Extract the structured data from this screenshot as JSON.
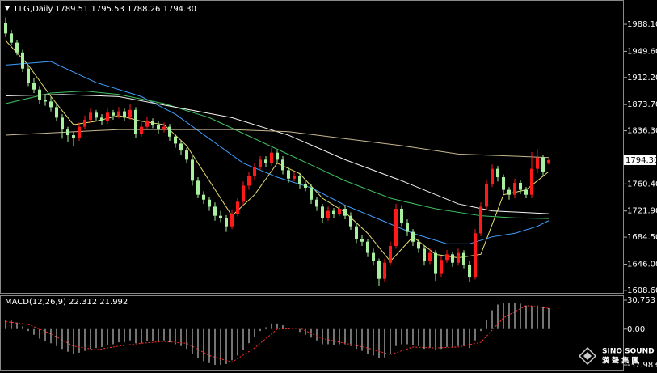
{
  "chart_data": [
    {
      "type": "candlestick",
      "title": "LLG,Daily",
      "ohlc_text": "1789.51 1795.53 1788.26 1794.30",
      "up_color": "#ff1a1a",
      "down_color": "#a8f0a0",
      "ylim": [
        1605,
        2017
      ],
      "yticks": [
        {
          "value": 1988.1,
          "label": "1988.10"
        },
        {
          "value": 1949.6,
          "label": "1949.60"
        },
        {
          "value": 1912.2,
          "label": "1912.20"
        },
        {
          "value": 1873.7,
          "label": "1873.70"
        },
        {
          "value": 1836.3,
          "label": "1836.30"
        },
        {
          "value": 1760.4,
          "label": "1760.40"
        },
        {
          "value": 1721.9,
          "label": "1721.90"
        },
        {
          "value": 1684.5,
          "label": "1684.50"
        },
        {
          "value": 1646,
          "label": "1646.00"
        },
        {
          "value": 1608.6,
          "label": "1608.60"
        }
      ],
      "last_price": {
        "value": 1794.3,
        "label": "1794.30"
      },
      "ohlc": [
        [
          1990,
          1998,
          1970,
          1975
        ],
        [
          1975,
          1980,
          1958,
          1962
        ],
        [
          1962,
          1966,
          1944,
          1948
        ],
        [
          1948,
          1952,
          1920,
          1925
        ],
        [
          1925,
          1930,
          1900,
          1905
        ],
        [
          1905,
          1912,
          1890,
          1895
        ],
        [
          1895,
          1900,
          1875,
          1880
        ],
        [
          1880,
          1888,
          1872,
          1878
        ],
        [
          1878,
          1884,
          1864,
          1870
        ],
        [
          1870,
          1874,
          1850,
          1855
        ],
        [
          1855,
          1860,
          1825,
          1838
        ],
        [
          1838,
          1842,
          1820,
          1830
        ],
        [
          1830,
          1835,
          1815,
          1826
        ],
        [
          1826,
          1848,
          1822,
          1842
        ],
        [
          1842,
          1858,
          1838,
          1852
        ],
        [
          1852,
          1868,
          1848,
          1862
        ],
        [
          1862,
          1866,
          1850,
          1855
        ],
        [
          1855,
          1860,
          1845,
          1850
        ],
        [
          1850,
          1868,
          1846,
          1862
        ],
        [
          1862,
          1866,
          1852,
          1858
        ],
        [
          1858,
          1870,
          1854,
          1864
        ],
        [
          1864,
          1868,
          1850,
          1855
        ],
        [
          1855,
          1874,
          1852,
          1866
        ],
        [
          1866,
          1870,
          1826,
          1832
        ],
        [
          1832,
          1848,
          1828,
          1842
        ],
        [
          1842,
          1856,
          1838,
          1850
        ],
        [
          1850,
          1854,
          1840,
          1845
        ],
        [
          1845,
          1850,
          1832,
          1838
        ],
        [
          1838,
          1848,
          1834,
          1842
        ],
        [
          1842,
          1846,
          1822,
          1828
        ],
        [
          1828,
          1832,
          1812,
          1818
        ],
        [
          1818,
          1822,
          1802,
          1808
        ],
        [
          1808,
          1812,
          1790,
          1795
        ],
        [
          1795,
          1800,
          1758,
          1765
        ],
        [
          1765,
          1770,
          1740,
          1745
        ],
        [
          1745,
          1750,
          1732,
          1738
        ],
        [
          1738,
          1742,
          1722,
          1728
        ],
        [
          1728,
          1734,
          1708,
          1715
        ],
        [
          1715,
          1722,
          1706,
          1712
        ],
        [
          1712,
          1716,
          1692,
          1700
        ],
        [
          1700,
          1724,
          1696,
          1718
        ],
        [
          1718,
          1740,
          1714,
          1735
        ],
        [
          1735,
          1764,
          1730,
          1758
        ],
        [
          1758,
          1778,
          1752,
          1772
        ],
        [
          1772,
          1790,
          1766,
          1785
        ],
        [
          1785,
          1800,
          1780,
          1795
        ],
        [
          1795,
          1800,
          1784,
          1790
        ],
        [
          1790,
          1812,
          1786,
          1805
        ],
        [
          1805,
          1808,
          1790,
          1795
        ],
        [
          1795,
          1800,
          1774,
          1780
        ],
        [
          1780,
          1784,
          1762,
          1768
        ],
        [
          1768,
          1778,
          1764,
          1772
        ],
        [
          1772,
          1776,
          1754,
          1760
        ],
        [
          1760,
          1764,
          1750,
          1755
        ],
        [
          1755,
          1760,
          1732,
          1738
        ],
        [
          1738,
          1742,
          1722,
          1728
        ],
        [
          1728,
          1732,
          1705,
          1712
        ],
        [
          1712,
          1728,
          1708,
          1722
        ],
        [
          1722,
          1726,
          1712,
          1718
        ],
        [
          1718,
          1730,
          1714,
          1725
        ],
        [
          1725,
          1730,
          1710,
          1715
        ],
        [
          1715,
          1720,
          1695,
          1700
        ],
        [
          1700,
          1704,
          1676,
          1682
        ],
        [
          1682,
          1688,
          1672,
          1678
        ],
        [
          1678,
          1682,
          1656,
          1662
        ],
        [
          1662,
          1668,
          1644,
          1650
        ],
        [
          1650,
          1654,
          1615,
          1625
        ],
        [
          1625,
          1654,
          1620,
          1648
        ],
        [
          1648,
          1678,
          1644,
          1672
        ],
        [
          1672,
          1732,
          1668,
          1725
        ],
        [
          1725,
          1730,
          1700,
          1705
        ],
        [
          1705,
          1710,
          1686,
          1692
        ],
        [
          1692,
          1696,
          1672,
          1678
        ],
        [
          1678,
          1682,
          1662,
          1668
        ],
        [
          1668,
          1672,
          1644,
          1650
        ],
        [
          1650,
          1668,
          1646,
          1662
        ],
        [
          1662,
          1666,
          1622,
          1632
        ],
        [
          1632,
          1658,
          1628,
          1652
        ],
        [
          1652,
          1666,
          1648,
          1660
        ],
        [
          1660,
          1664,
          1642,
          1648
        ],
        [
          1648,
          1668,
          1644,
          1662
        ],
        [
          1662,
          1666,
          1640,
          1645
        ],
        [
          1645,
          1650,
          1620,
          1628
        ],
        [
          1628,
          1696,
          1624,
          1690
        ],
        [
          1690,
          1734,
          1686,
          1728
        ],
        [
          1728,
          1766,
          1724,
          1760
        ],
        [
          1760,
          1788,
          1756,
          1782
        ],
        [
          1782,
          1786,
          1764,
          1770
        ],
        [
          1770,
          1774,
          1746,
          1752
        ],
        [
          1752,
          1756,
          1738,
          1745
        ],
        [
          1745,
          1768,
          1740,
          1762
        ],
        [
          1762,
          1766,
          1746,
          1752
        ],
        [
          1752,
          1756,
          1740,
          1745
        ],
        [
          1745,
          1806,
          1740,
          1782
        ],
        [
          1782,
          1810,
          1776,
          1798
        ],
        [
          1798,
          1802,
          1772,
          1778
        ],
        [
          1789.51,
          1795.53,
          1788.26,
          1794.3
        ]
      ],
      "moving_averages": [
        {
          "color": "#e8e070",
          "x": [
            0,
            4,
            8,
            12,
            16,
            20,
            24,
            28,
            32,
            36,
            40,
            44,
            48,
            52,
            56,
            60,
            64,
            68,
            72,
            76,
            80,
            84,
            88,
            92,
            96
          ],
          "values": [
            1965,
            1930,
            1885,
            1845,
            1850,
            1858,
            1850,
            1845,
            1815,
            1765,
            1715,
            1745,
            1790,
            1775,
            1740,
            1720,
            1690,
            1650,
            1685,
            1660,
            1655,
            1660,
            1745,
            1752,
            1778
          ]
        },
        {
          "color": "#3f9fff",
          "x": [
            0,
            8,
            12,
            16,
            24,
            30,
            36,
            42,
            48,
            54,
            60,
            66,
            72,
            78,
            82,
            86,
            90,
            94,
            96
          ],
          "values": [
            1930,
            1935,
            1920,
            1905,
            1885,
            1860,
            1825,
            1790,
            1770,
            1755,
            1730,
            1710,
            1690,
            1675,
            1675,
            1685,
            1690,
            1700,
            1708
          ]
        },
        {
          "color": "#3fc060",
          "x": [
            0,
            8,
            14,
            20,
            28,
            36,
            44,
            52,
            60,
            68,
            76,
            84,
            90,
            96
          ],
          "values": [
            1875,
            1890,
            1893,
            1888,
            1875,
            1855,
            1825,
            1795,
            1765,
            1740,
            1725,
            1715,
            1712,
            1711
          ]
        },
        {
          "color": "#f4f4f0",
          "x": [
            0,
            10,
            20,
            30,
            40,
            50,
            60,
            70,
            80,
            86,
            96
          ],
          "values": [
            1886,
            1888,
            1885,
            1870,
            1855,
            1830,
            1795,
            1765,
            1732,
            1722,
            1718
          ]
        },
        {
          "color": "#c8b890",
          "x": [
            0,
            20,
            40,
            50,
            60,
            70,
            80,
            90,
            96
          ],
          "values": [
            1830,
            1838,
            1838,
            1835,
            1825,
            1815,
            1803,
            1800,
            1798
          ]
        }
      ]
    },
    {
      "type": "macd",
      "title": "MACD(12,26,9) 22.312 21.992",
      "color": "#e8e8e8",
      "ylim": [
        -43.1,
        35.9
      ],
      "yticks": [
        30.753,
        {
          "value": 0,
          "label": "0.00"
        },
        -37.983
      ],
      "values": [
        10,
        9,
        7,
        3,
        -2,
        -6,
        -10,
        -13,
        -15,
        -18,
        -21,
        -24,
        -26,
        -25,
        -23,
        -21,
        -20,
        -19,
        -17,
        -16,
        -14,
        -14,
        -12,
        -15,
        -15,
        -13,
        -13,
        -13,
        -12,
        -14,
        -16,
        -18,
        -21,
        -26,
        -31,
        -34,
        -36,
        -38,
        -38,
        -37,
        -33,
        -28,
        -22,
        -15,
        -8,
        -2,
        2,
        6,
        6,
        4,
        1,
        0,
        -3,
        -6,
        -9,
        -12,
        -16,
        -16,
        -17,
        -16,
        -16,
        -18,
        -21,
        -23,
        -26,
        -28,
        -31,
        -30,
        -26,
        -18,
        -16,
        -16,
        -17,
        -18,
        -21,
        -20,
        -22,
        -21,
        -19,
        -19,
        -18,
        -18,
        -20,
        -12,
        -2,
        10,
        20,
        26,
        28,
        28,
        28,
        27,
        25,
        25,
        25,
        24,
        22.312
      ],
      "signal": {
        "color": "#ff3030",
        "x": [
          0,
          4,
          8,
          12,
          16,
          20,
          24,
          28,
          32,
          36,
          40,
          44,
          48,
          52,
          56,
          60,
          64,
          68,
          72,
          76,
          80,
          84,
          88,
          92,
          96
        ],
        "values": [
          8,
          5,
          -5,
          -18,
          -22,
          -18,
          -15,
          -13,
          -15,
          -28,
          -35,
          -20,
          0,
          1,
          -10,
          -15,
          -20,
          -27,
          -19,
          -20,
          -19,
          -14,
          12,
          25,
          21.992
        ]
      }
    }
  ],
  "watermark": {
    "brand": "SINO SOUND",
    "sub": "漢 聲 集 團"
  }
}
